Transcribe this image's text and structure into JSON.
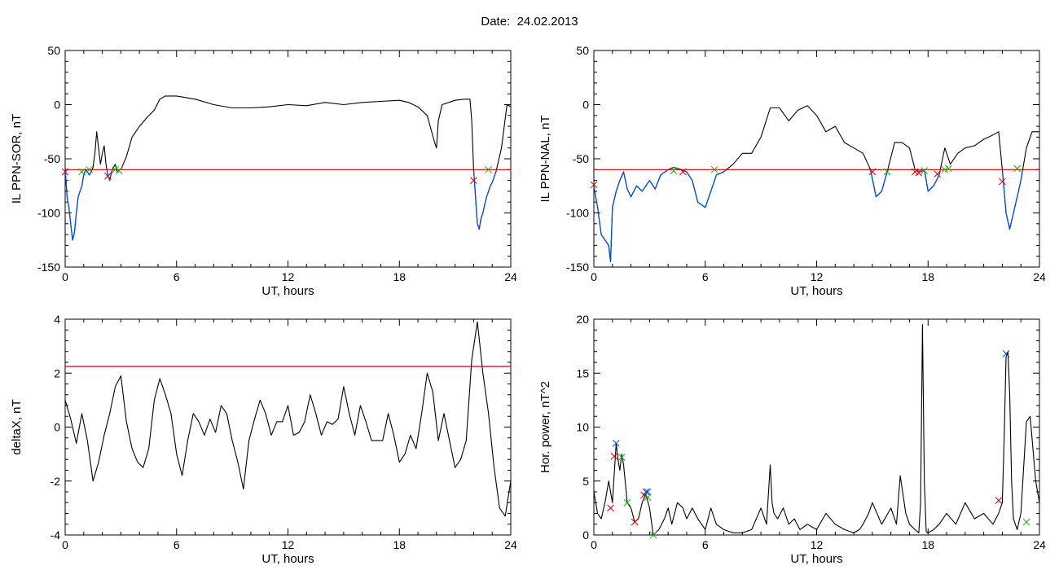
{
  "header": {
    "date_label": "Date:",
    "date_value": "24.02.2013"
  },
  "colors": {
    "axes": "#000000",
    "threshold": "#d00000",
    "below": "#0050c8",
    "marker_start": "#d00000",
    "marker_end": "#10b010",
    "marker_peak": "#0050c8"
  },
  "chart_data": [
    {
      "id": "tl",
      "type": "line",
      "title": "",
      "xlabel": "UT, hours",
      "ylabel": "IL PPN-SOR, nT",
      "xlim": [
        0,
        24
      ],
      "ylim": [
        -150,
        50
      ],
      "xticks": [
        0,
        6,
        12,
        18,
        24
      ],
      "xtick_labels": [
        "0",
        "6",
        "12",
        "18",
        "24"
      ],
      "yticks": [
        -150,
        -100,
        -50,
        0,
        50
      ],
      "ytick_labels": [
        "-150",
        "-100",
        "-50",
        "0",
        "50"
      ],
      "threshold": -60,
      "x": [
        0,
        0.1,
        0.2,
        0.3,
        0.4,
        0.5,
        0.6,
        0.7,
        0.8,
        0.9,
        1.0,
        1.1,
        1.2,
        1.3,
        1.4,
        1.5,
        1.6,
        1.7,
        1.8,
        1.9,
        2.0,
        2.1,
        2.2,
        2.3,
        2.4,
        2.5,
        2.6,
        2.7,
        2.8,
        2.9,
        3.0,
        3.3,
        3.6,
        4.0,
        4.4,
        4.8,
        5.1,
        5.4,
        6.0,
        7.0,
        8.0,
        9.0,
        10.0,
        11.0,
        12.0,
        13.0,
        14.0,
        15.0,
        16.0,
        17.0,
        18.0,
        18.5,
        19.0,
        19.5,
        19.9,
        20.0,
        20.1,
        20.3,
        21.0,
        21.5,
        21.8,
        21.9,
        22.0,
        22.1,
        22.2,
        22.3,
        22.4,
        22.5,
        22.6,
        22.7,
        22.8,
        22.9,
        23.0,
        23.2,
        23.5,
        23.8,
        24.0
      ],
      "y": [
        -58,
        -85,
        -95,
        -110,
        -125,
        -118,
        -100,
        -85,
        -80,
        -75,
        -65,
        -60,
        -62,
        -65,
        -62,
        -58,
        -45,
        -25,
        -40,
        -55,
        -45,
        -38,
        -55,
        -65,
        -70,
        -62,
        -58,
        -55,
        -62,
        -60,
        -60,
        -48,
        -30,
        -20,
        -12,
        -5,
        5,
        8,
        8,
        5,
        0,
        -3,
        -3,
        -2,
        0,
        -1,
        2,
        0,
        2,
        3,
        4,
        2,
        -2,
        -10,
        -35,
        -40,
        -15,
        0,
        4,
        5,
        5,
        -15,
        -60,
        -85,
        -110,
        -115,
        -105,
        -100,
        -92,
        -85,
        -80,
        -75,
        -72,
        -62,
        -40,
        0,
        -2
      ],
      "markers_start": [
        [
          0,
          -62
        ],
        [
          2.3,
          -66
        ],
        [
          22.0,
          -70
        ]
      ],
      "markers_end": [
        [
          0.9,
          -62
        ],
        [
          1.3,
          -60
        ],
        [
          2.7,
          -60
        ],
        [
          2.9,
          -61
        ],
        [
          22.8,
          -60
        ]
      ]
    },
    {
      "id": "tr",
      "type": "line",
      "title": "",
      "xlabel": "UT, hours",
      "ylabel": "IL PPN-NAL, nT",
      "xlim": [
        0,
        24
      ],
      "ylim": [
        -150,
        50
      ],
      "xticks": [
        0,
        6,
        12,
        18,
        24
      ],
      "xtick_labels": [
        "0",
        "6",
        "12",
        "18",
        "24"
      ],
      "yticks": [
        -150,
        -100,
        -50,
        0,
        50
      ],
      "ytick_labels": [
        "-150",
        "-100",
        "-50",
        "0",
        "50"
      ],
      "threshold": -60,
      "x": [
        0,
        0.2,
        0.4,
        0.6,
        0.8,
        0.9,
        1.0,
        1.2,
        1.4,
        1.6,
        1.8,
        2.0,
        2.3,
        2.6,
        3.0,
        3.3,
        3.6,
        4.0,
        4.3,
        4.7,
        5.0,
        5.3,
        5.6,
        6.0,
        6.3,
        6.6,
        7.0,
        7.5,
        8.0,
        8.5,
        9.0,
        9.5,
        10.0,
        10.5,
        11.0,
        11.5,
        12.0,
        12.5,
        13.0,
        13.5,
        14.0,
        14.5,
        14.9,
        15.2,
        15.5,
        15.8,
        16.2,
        16.6,
        17.0,
        17.3,
        17.6,
        17.8,
        18.0,
        18.3,
        18.6,
        18.9,
        19.2,
        19.6,
        20.0,
        20.5,
        21.0,
        21.5,
        21.8,
        22.0,
        22.2,
        22.4,
        22.6,
        22.8,
        23.0,
        23.3,
        23.6,
        24.0
      ],
      "y": [
        -75,
        -95,
        -120,
        -125,
        -130,
        -145,
        -95,
        -80,
        -70,
        -62,
        -78,
        -85,
        -75,
        -80,
        -70,
        -78,
        -65,
        -60,
        -58,
        -60,
        -62,
        -70,
        -90,
        -95,
        -80,
        -65,
        -62,
        -55,
        -45,
        -45,
        -30,
        -3,
        -3,
        -15,
        -5,
        -1,
        -10,
        -25,
        -20,
        -35,
        -40,
        -45,
        -60,
        -85,
        -80,
        -62,
        -35,
        -35,
        -40,
        -60,
        -62,
        -60,
        -80,
        -75,
        -65,
        -40,
        -55,
        -45,
        -40,
        -38,
        -32,
        -28,
        -25,
        -60,
        -100,
        -115,
        -100,
        -85,
        -70,
        -40,
        -25,
        -25
      ],
      "markers_start": [
        [
          0,
          -74
        ],
        [
          4.8,
          -62
        ],
        [
          15.0,
          -62
        ],
        [
          17.3,
          -62
        ],
        [
          17.5,
          -63
        ],
        [
          18.5,
          -64
        ],
        [
          22.0,
          -71
        ]
      ],
      "markers_end": [
        [
          4.3,
          -61
        ],
        [
          6.5,
          -60
        ],
        [
          15.8,
          -62
        ],
        [
          17.8,
          -61
        ],
        [
          18.9,
          -60
        ],
        [
          19.1,
          -59
        ],
        [
          22.8,
          -59
        ]
      ]
    },
    {
      "id": "bl",
      "type": "line",
      "title": "",
      "xlabel": "UT, hours",
      "ylabel": "deltaX, nT",
      "xlim": [
        0,
        24
      ],
      "ylim": [
        -4,
        4
      ],
      "xticks": [
        0,
        6,
        12,
        18,
        24
      ],
      "xtick_labels": [
        "0",
        "6",
        "12",
        "18",
        "24"
      ],
      "yticks": [
        -4,
        -2,
        0,
        2,
        4
      ],
      "ytick_labels": [
        "-4",
        "-2",
        "0",
        "2",
        "4"
      ],
      "threshold": 2.25,
      "x": [
        0,
        0.3,
        0.6,
        0.9,
        1.2,
        1.5,
        1.8,
        2.1,
        2.4,
        2.7,
        3.0,
        3.3,
        3.6,
        3.9,
        4.2,
        4.5,
        4.8,
        5.1,
        5.4,
        5.7,
        6.0,
        6.3,
        6.6,
        6.9,
        7.2,
        7.5,
        7.8,
        8.1,
        8.4,
        8.7,
        9.0,
        9.3,
        9.6,
        9.9,
        10.2,
        10.5,
        10.8,
        11.1,
        11.4,
        11.7,
        12.0,
        12.3,
        12.6,
        12.9,
        13.2,
        13.5,
        13.8,
        14.1,
        14.4,
        14.7,
        15.0,
        15.3,
        15.6,
        15.9,
        16.2,
        16.5,
        16.8,
        17.1,
        17.4,
        17.7,
        18.0,
        18.3,
        18.6,
        18.9,
        19.2,
        19.5,
        19.8,
        20.1,
        20.4,
        20.7,
        21.0,
        21.3,
        21.6,
        21.9,
        22.2,
        22.5,
        22.8,
        23.1,
        23.4,
        23.7,
        24.0
      ],
      "y": [
        1.0,
        0.3,
        -0.6,
        0.5,
        -0.5,
        -2.0,
        -1.3,
        -0.3,
        0.5,
        1.5,
        1.9,
        0.2,
        -0.8,
        -1.3,
        -1.5,
        -0.8,
        1.0,
        1.8,
        1.2,
        0.5,
        -1.0,
        -1.8,
        -0.5,
        0.5,
        0.2,
        -0.3,
        0.3,
        -0.2,
        0.8,
        0.5,
        -0.5,
        -1.3,
        -2.3,
        -0.5,
        0.3,
        1.0,
        0.5,
        -0.3,
        0.2,
        0.2,
        0.8,
        -0.3,
        -0.2,
        0.2,
        1.2,
        0.5,
        -0.3,
        0.2,
        0.1,
        0.3,
        1.5,
        0.5,
        -0.3,
        0.8,
        0.2,
        -0.5,
        -0.5,
        -0.5,
        0.5,
        -0.3,
        -1.3,
        -1.0,
        -0.3,
        -0.8,
        0.5,
        2.0,
        1.3,
        -0.5,
        0.5,
        -0.5,
        -1.5,
        -1.2,
        -0.5,
        2.5,
        3.9,
        2.0,
        0.5,
        -1.5,
        -3.0,
        -3.3,
        -2.0
      ],
      "markers_start": [],
      "markers_end": []
    },
    {
      "id": "br",
      "type": "line",
      "title": "",
      "xlabel": "UT, hours",
      "ylabel": "Hor. power, nT^2",
      "xlim": [
        0,
        24
      ],
      "ylim": [
        0,
        20
      ],
      "xticks": [
        0,
        6,
        12,
        18,
        24
      ],
      "xtick_labels": [
        "0",
        "6",
        "12",
        "18",
        "24"
      ],
      "yticks": [
        0,
        5,
        10,
        15,
        20
      ],
      "ytick_labels": [
        "0",
        "5",
        "10",
        "15",
        "20"
      ],
      "threshold": null,
      "x": [
        0,
        0.2,
        0.4,
        0.6,
        0.8,
        1.0,
        1.2,
        1.3,
        1.4,
        1.5,
        1.6,
        1.8,
        2.0,
        2.2,
        2.4,
        2.6,
        2.8,
        3.0,
        3.2,
        3.5,
        3.8,
        4.0,
        4.2,
        4.5,
        4.8,
        5.0,
        5.3,
        5.6,
        6.0,
        6.3,
        6.6,
        7.0,
        7.5,
        8.0,
        8.5,
        9.0,
        9.3,
        9.5,
        9.6,
        9.7,
        9.9,
        10.2,
        10.5,
        10.8,
        11.1,
        11.5,
        12.0,
        12.5,
        13.0,
        13.5,
        14.0,
        14.3,
        14.5,
        14.8,
        15.0,
        15.5,
        16.0,
        16.3,
        16.5,
        16.8,
        17.0,
        17.3,
        17.5,
        17.6,
        17.7,
        17.8,
        17.9,
        18.0,
        18.3,
        18.6,
        19.0,
        19.5,
        20.0,
        20.5,
        21.0,
        21.5,
        21.8,
        22.0,
        22.1,
        22.2,
        22.3,
        22.4,
        22.5,
        22.6,
        22.8,
        23.0,
        23.3,
        23.5,
        23.8,
        24.0
      ],
      "y": [
        4,
        2,
        1.5,
        3,
        5,
        3,
        8.5,
        7,
        6,
        7.5,
        6.5,
        3,
        2.5,
        1.2,
        1.5,
        3,
        3.8,
        2.5,
        0,
        0.5,
        1.5,
        2.5,
        1,
        3,
        2.5,
        1.5,
        2.5,
        1.5,
        0.5,
        2.5,
        1,
        0.5,
        0.2,
        0.2,
        0.5,
        2.5,
        1,
        6.5,
        3,
        2,
        1.5,
        2.5,
        1,
        1.5,
        0.5,
        1,
        0.5,
        2,
        1,
        0.5,
        0.2,
        0.5,
        1,
        2,
        3,
        1,
        2.5,
        1,
        5.5,
        2,
        1,
        0.5,
        0.2,
        3,
        19.5,
        5,
        0.3,
        0.2,
        0.5,
        1,
        2,
        1,
        3,
        1.5,
        2,
        1,
        2,
        3,
        9,
        16.5,
        17,
        13,
        5,
        1.5,
        0.5,
        2,
        10.5,
        11,
        5,
        3
      ],
      "markers_start": [
        [
          0.9,
          2.5
        ],
        [
          1.1,
          7.3
        ],
        [
          2.2,
          1.2
        ],
        [
          2.7,
          3.7
        ],
        [
          21.8,
          3.2
        ]
      ],
      "markers_end": [
        [
          1.5,
          7.2
        ],
        [
          1.8,
          3.0
        ],
        [
          2.9,
          3.5
        ],
        [
          3.2,
          0.0
        ],
        [
          23.3,
          1.2
        ]
      ],
      "markers_peak": [
        [
          1.2,
          8.5
        ],
        [
          2.8,
          4.0
        ],
        [
          2.9,
          4.0
        ],
        [
          22.2,
          16.8
        ]
      ]
    }
  ]
}
